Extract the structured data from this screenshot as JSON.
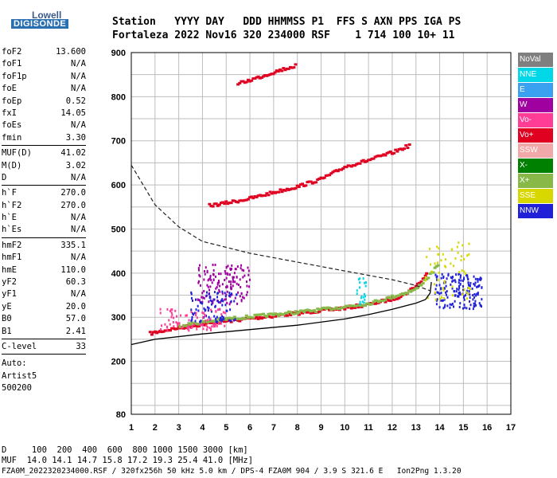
{
  "logo": {
    "line1": "Lowell",
    "line2": "DIGISONDE"
  },
  "header": {
    "line1": "Station   YYYY DAY   DDD HHMMSS P1  FFS S AXN PPS IGA PS",
    "line2": "Fortaleza 2022 Nov16 320 234000 RSF    1 714 100 10+ 11"
  },
  "params": [
    {
      "label": "foF2",
      "value": "13.600"
    },
    {
      "label": "foF1",
      "value": "N/A"
    },
    {
      "label": "foF1p",
      "value": "N/A"
    },
    {
      "label": "foE",
      "value": "N/A"
    },
    {
      "label": "foEp",
      "value": "0.52"
    },
    {
      "label": "fxI",
      "value": "14.05"
    },
    {
      "label": "foEs",
      "value": "N/A"
    },
    {
      "label": "fmin",
      "value": "3.30"
    },
    {
      "sep": true
    },
    {
      "label": "MUF(D)",
      "value": "41.02"
    },
    {
      "label": "M(D)",
      "value": "3.02"
    },
    {
      "label": "D",
      "value": "N/A"
    },
    {
      "sep": true
    },
    {
      "label": "h`F",
      "value": "270.0"
    },
    {
      "label": "h`F2",
      "value": "270.0"
    },
    {
      "label": "h`E",
      "value": "N/A"
    },
    {
      "label": "h`Es",
      "value": "N/A"
    },
    {
      "sep": true
    },
    {
      "label": "hmF2",
      "value": "335.1"
    },
    {
      "label": "hmF1",
      "value": "N/A"
    },
    {
      "label": "hmE",
      "value": "110.0"
    },
    {
      "label": "yF2",
      "value": "60.3"
    },
    {
      "label": "yF1",
      "value": "N/A"
    },
    {
      "label": "yE",
      "value": "20.0"
    },
    {
      "label": "B0",
      "value": "57.0"
    },
    {
      "label": "B1",
      "value": "2.41"
    },
    {
      "sep": true
    },
    {
      "label": "C-level",
      "value": "33"
    },
    {
      "sep": true
    }
  ],
  "auto": [
    "Auto:",
    "Artist5",
    "500200"
  ],
  "footer": {
    "line1": "D     100  200  400  600  800 1000 1500 3000 [km]",
    "line2": "MUF  14.0 14.1 14.7 15.8 17.2 19.3 25.4 41.0 [MHz]",
    "line3": "FZA0M_2022320234000.RSF / 320fx256h 50 kHz 5.0 km / DPS-4 FZA0M 904 / 3.9 S 321.6 E   Ion2Png 1.3.20"
  },
  "legend": [
    {
      "label": "NoVal",
      "color": "#7f7f7f"
    },
    {
      "label": "NNE",
      "color": "#00d8e8"
    },
    {
      "label": "E",
      "color": "#3aa0f0"
    },
    {
      "label": "W",
      "color": "#a000a0"
    },
    {
      "label": "Vo-",
      "color": "#ff3c96"
    },
    {
      "label": "Vo+",
      "color": "#e00020"
    },
    {
      "label": "SSW",
      "color": "#f0a8a8"
    },
    {
      "label": "X-",
      "color": "#008000"
    },
    {
      "label": "X+",
      "color": "#88b848"
    },
    {
      "label": "SSE",
      "color": "#d8d800"
    },
    {
      "label": "NNW",
      "color": "#2020d8"
    }
  ],
  "chart_data": {
    "type": "scatter",
    "xlabel": "",
    "ylabel": "",
    "xlim": [
      1,
      17
    ],
    "ylim": [
      80,
      900
    ],
    "xticks": [
      1,
      2,
      3,
      4,
      5,
      6,
      7,
      8,
      9,
      10,
      11,
      12,
      13,
      14,
      15,
      16,
      17
    ],
    "yticks": [
      80,
      200,
      300,
      400,
      500,
      600,
      700,
      800,
      900
    ],
    "grid": true,
    "legend_position": "right",
    "traces": [
      {
        "name": "F2 O-trace (Vo+)",
        "color": "#e00020",
        "points": [
          [
            1.8,
            262
          ],
          [
            2.5,
            270
          ],
          [
            3,
            275
          ],
          [
            4,
            283
          ],
          [
            5,
            290
          ],
          [
            6,
            296
          ],
          [
            7,
            302
          ],
          [
            8,
            308
          ],
          [
            9,
            314
          ],
          [
            10,
            320
          ],
          [
            11,
            328
          ],
          [
            12,
            340
          ],
          [
            12.5,
            350
          ],
          [
            13,
            370
          ],
          [
            13.3,
            385
          ],
          [
            13.5,
            400
          ]
        ]
      },
      {
        "name": "F2 X-trace (X+)",
        "color": "#88b848",
        "points": [
          [
            3,
            280
          ],
          [
            5,
            295
          ],
          [
            7,
            305
          ],
          [
            9,
            316
          ],
          [
            11,
            330
          ],
          [
            12,
            345
          ],
          [
            13,
            362
          ],
          [
            13.6,
            395
          ],
          [
            14,
            420
          ]
        ]
      },
      {
        "name": "Second hop",
        "color": "#e00020",
        "points": [
          [
            4.3,
            552
          ],
          [
            5,
            558
          ],
          [
            6,
            568
          ],
          [
            7,
            582
          ],
          [
            8,
            595
          ],
          [
            9,
            612
          ],
          [
            9.5,
            625
          ],
          [
            10,
            640
          ],
          [
            11,
            655
          ],
          [
            12,
            672
          ],
          [
            12.8,
            690
          ]
        ]
      },
      {
        "name": "Third hop",
        "color": "#e00020",
        "points": [
          [
            5.5,
            828
          ],
          [
            6.5,
            845
          ],
          [
            7.2,
            858
          ],
          [
            8,
            870
          ]
        ]
      }
    ],
    "profile_solid": [
      [
        1,
        238
      ],
      [
        2,
        250
      ],
      [
        4,
        262
      ],
      [
        6,
        272
      ],
      [
        8,
        282
      ],
      [
        10,
        296
      ],
      [
        11,
        306
      ],
      [
        12,
        318
      ],
      [
        13,
        332
      ],
      [
        13.4,
        340
      ],
      [
        13.6,
        355
      ],
      [
        13.65,
        380
      ]
    ],
    "profile_dashed": [
      [
        1,
        645
      ],
      [
        2,
        555
      ],
      [
        3,
        505
      ],
      [
        4,
        472
      ],
      [
        6,
        445
      ],
      [
        8,
        425
      ],
      [
        10,
        405
      ],
      [
        11,
        395
      ],
      [
        12,
        385
      ],
      [
        13,
        372
      ],
      [
        13.6,
        360
      ]
    ]
  }
}
